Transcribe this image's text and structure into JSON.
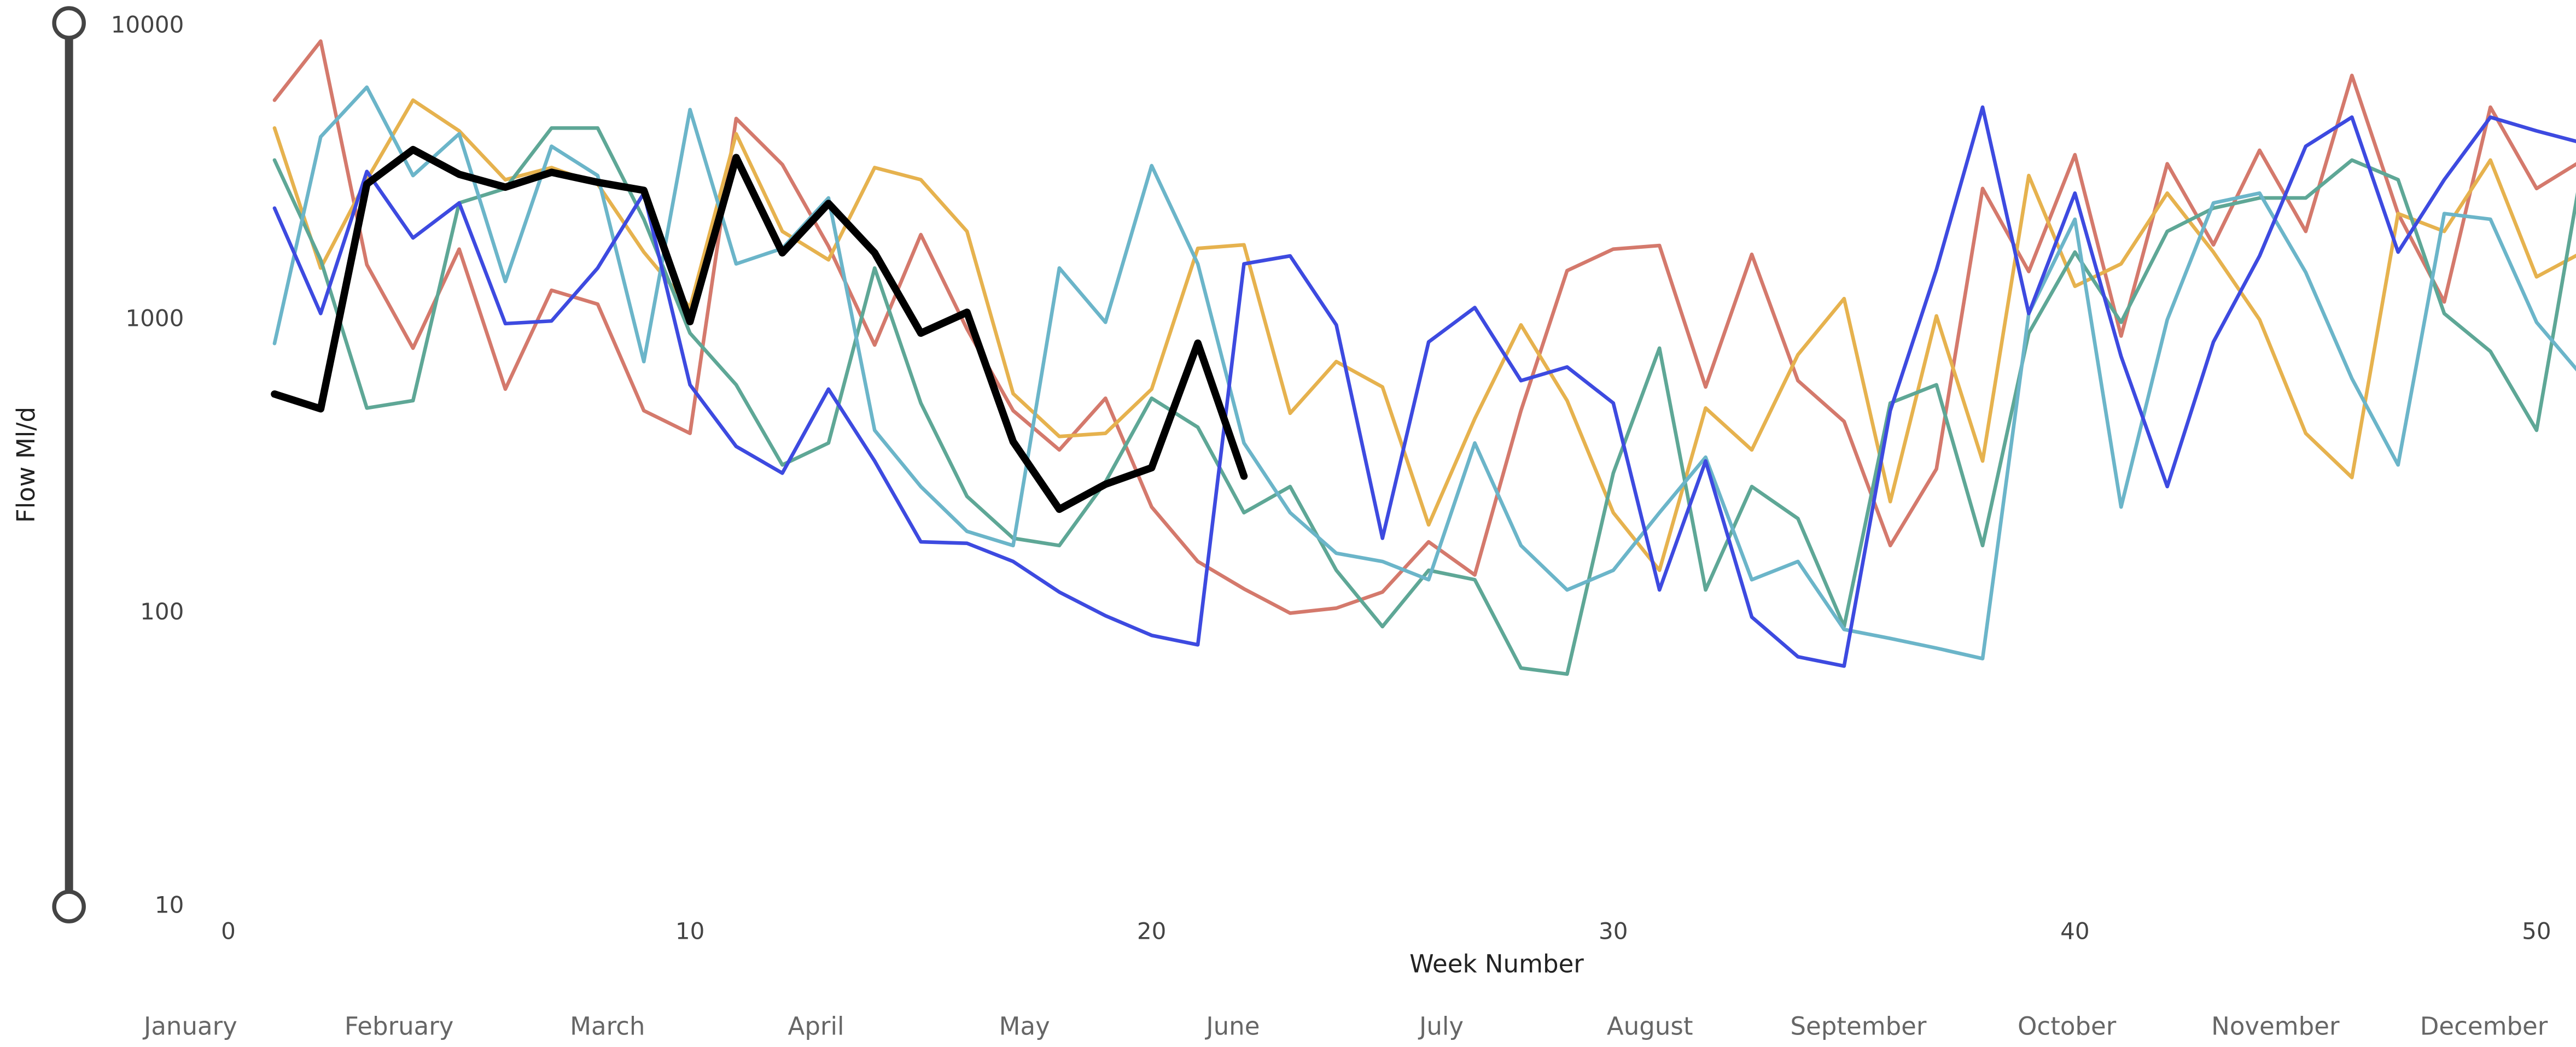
{
  "chart_data": {
    "type": "line",
    "x_label": "Week Number",
    "y_label": "Flow Ml/d",
    "log_y": true,
    "xlim": [
      0,
      51
    ],
    "xticks": [
      0,
      10,
      20,
      30,
      40,
      50
    ],
    "ylim": [
      10,
      10000
    ],
    "yticks": [
      10,
      100,
      1000,
      10000
    ],
    "month_labels": [
      "January",
      "February",
      "March",
      "April",
      "May",
      "June",
      "July",
      "August",
      "September",
      "October",
      "November",
      "December"
    ],
    "x": [
      1,
      2,
      3,
      4,
      5,
      6,
      7,
      8,
      9,
      10,
      11,
      12,
      13,
      14,
      15,
      16,
      17,
      18,
      19,
      20,
      21,
      22,
      23,
      24,
      25,
      26,
      27,
      28,
      29,
      30,
      31,
      32,
      33,
      34,
      35,
      36,
      37,
      38,
      39,
      40,
      41,
      42,
      43,
      44,
      45,
      46,
      47,
      48,
      49,
      50,
      51
    ],
    "series": [
      {
        "color": "#d4796c",
        "width": 2.2,
        "values": [
          5600,
          8900,
          1540,
          800,
          1740,
          580,
          1260,
          1130,
          490,
          410,
          4850,
          3380,
          1780,
          820,
          1950,
          930,
          490,
          360,
          540,
          230,
          150,
          121,
          100,
          104,
          118,
          175,
          135,
          490,
          1470,
          1740,
          1790,
          590,
          1670,
          620,
          450,
          170,
          310,
          2800,
          1460,
          3650,
          880,
          3400,
          1800,
          3780,
          2000,
          6800,
          2300,
          1150,
          5300,
          2800,
          3500
        ]
      },
      {
        "color": "#e6b24e",
        "width": 2.2,
        "values": [
          4500,
          1500,
          3000,
          5600,
          4400,
          3000,
          3300,
          2900,
          1700,
          1100,
          4300,
          2000,
          1600,
          3300,
          3000,
          2000,
          560,
          400,
          410,
          580,
          1750,
          1800,
          480,
          720,
          590,
          200,
          460,
          960,
          530,
          220,
          140,
          500,
          360,
          760,
          1180,
          240,
          1030,
          330,
          3100,
          1300,
          1550,
          2700,
          1700,
          1000,
          410,
          290,
          2300,
          2000,
          3500,
          1400,
          1700
        ]
      },
      {
        "color": "#5ea796",
        "width": 2.2,
        "values": [
          3500,
          1600,
          500,
          530,
          2500,
          2800,
          4500,
          4500,
          2200,
          900,
          600,
          320,
          380,
          1500,
          520,
          250,
          180,
          170,
          280,
          540,
          430,
          220,
          270,
          140,
          90,
          140,
          130,
          65,
          62,
          300,
          800,
          120,
          270,
          210,
          90,
          520,
          600,
          170,
          900,
          1700,
          980,
          2000,
          2400,
          2600,
          2600,
          3500,
          3000,
          1050,
          780,
          420,
          3400
        ]
      },
      {
        "color": "#6bb5c9",
        "width": 2.2,
        "values": [
          830,
          4200,
          6200,
          3100,
          4300,
          1350,
          3900,
          3100,
          720,
          5200,
          1550,
          1750,
          2600,
          420,
          270,
          190,
          170,
          1500,
          980,
          3350,
          1550,
          380,
          220,
          160,
          150,
          130,
          380,
          170,
          120,
          140,
          220,
          340,
          130,
          150,
          88,
          82,
          76,
          70,
          1050,
          2200,
          230,
          1000,
          2500,
          2700,
          1450,
          630,
          320,
          2300,
          2200,
          980,
          640
        ]
      },
      {
        "color": "#3d4ae0",
        "width": 2.2,
        "values": [
          2400,
          1050,
          3200,
          1900,
          2500,
          970,
          990,
          1500,
          2700,
          600,
          370,
          300,
          580,
          330,
          175,
          173,
          150,
          118,
          98,
          84,
          78,
          1550,
          1650,
          960,
          180,
          840,
          1100,
          620,
          690,
          520,
          120,
          330,
          97,
          71,
          66,
          490,
          1480,
          5300,
          1050,
          2700,
          750,
          270,
          840,
          1650,
          3900,
          4900,
          1700,
          3000,
          4900,
          4400,
          4000
        ]
      },
      {
        "color": "#000000",
        "width": 4.5,
        "values": [
          558,
          497,
          2900,
          3800,
          3130,
          2830,
          3180,
          2940,
          2760,
          985,
          3570,
          1690,
          2490,
          1690,
          900,
          1060,
          384,
          226,
          275,
          313,
          832,
          293,
          null,
          null,
          null,
          null,
          null,
          null,
          null,
          null,
          null,
          null,
          null,
          null,
          null,
          null,
          null,
          null,
          null,
          null,
          null,
          null,
          null,
          null,
          null,
          null,
          null,
          null,
          null,
          null,
          null
        ]
      }
    ]
  }
}
